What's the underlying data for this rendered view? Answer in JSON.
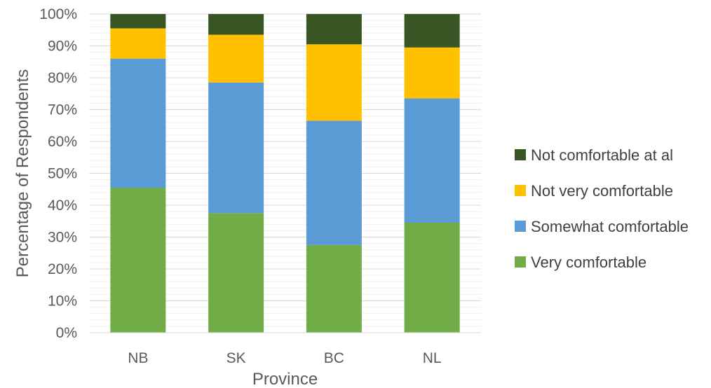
{
  "chart_data": {
    "type": "bar",
    "stacked": true,
    "normalized": true,
    "title": "",
    "xlabel": "Province",
    "ylabel": "Percentage of Respondents",
    "categories": [
      "NB",
      "SK",
      "BC",
      "NL"
    ],
    "ylim": [
      0,
      100
    ],
    "yticks": [
      "0%",
      "10%",
      "20%",
      "30%",
      "40%",
      "50%",
      "60%",
      "70%",
      "80%",
      "90%",
      "100%"
    ],
    "grid": true,
    "legend_position": "right",
    "series": [
      {
        "name": "Very comfortable",
        "color": "#70ad47",
        "values": [
          45.5,
          37.5,
          27.5,
          34.5
        ]
      },
      {
        "name": "Somewhat comfortable",
        "color": "#5b9bd5",
        "values": [
          40.5,
          41.0,
          39.0,
          39.0
        ]
      },
      {
        "name": "Not very comfortable",
        "color": "#ffc000",
        "values": [
          9.5,
          15.0,
          24.0,
          16.0
        ]
      },
      {
        "name": "Not comfortable at al",
        "color": "#375623",
        "values": [
          4.5,
          6.5,
          9.5,
          10.5
        ]
      }
    ]
  }
}
